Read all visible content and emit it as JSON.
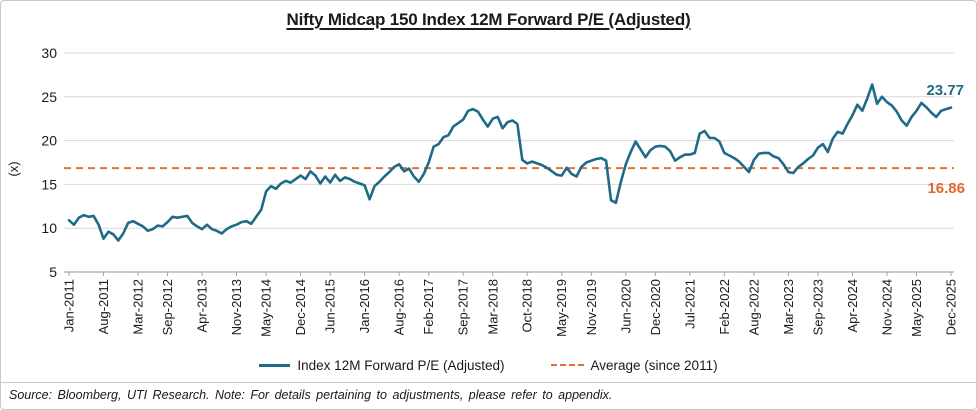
{
  "title": "Nifty Midcap 150 Index 12M Forward P/E (Adjusted)",
  "footer": "Source: Bloomberg, UTI Research. Note: For details pertaining to adjustments, please refer to appendix.",
  "annotations": {
    "last_value": "23.77",
    "average_value": "16.86"
  },
  "colors": {
    "series": "#1F6B87",
    "average": "#E2703C",
    "average_label": "#E2662C",
    "gridline": "#d9d9d9",
    "axis": "#a6a6a6",
    "text": "#1a1a1a"
  },
  "legend": [
    {
      "label": "Index 12M Forward P/E (Adjusted)",
      "type": "solid-line",
      "color": "#1F6B87"
    },
    {
      "label": "Average (since 2011)",
      "type": "dashed-line",
      "color": "#E2703C"
    }
  ],
  "chart_data": {
    "type": "line",
    "title": "Nifty Midcap 150 Index 12M Forward P/E (Adjusted)",
    "xlabel": "",
    "ylabel": "(x)",
    "ylim": [
      5,
      30
    ],
    "y_ticks": [
      5,
      10,
      15,
      20,
      25,
      30
    ],
    "grid": true,
    "legend_position": "bottom",
    "frequency": "monthly",
    "x_start": "Jan-2011",
    "x_end": "Dec-2025",
    "x_ticks": [
      {
        "label": "Jan-2011",
        "month": 0
      },
      {
        "label": "Aug-2011",
        "month": 7
      },
      {
        "label": "Mar-2012",
        "month": 14
      },
      {
        "label": "Sep-2012",
        "month": 20
      },
      {
        "label": "Apr-2013",
        "month": 27
      },
      {
        "label": "Nov-2013",
        "month": 34
      },
      {
        "label": "May-2014",
        "month": 40
      },
      {
        "label": "Dec-2014",
        "month": 47
      },
      {
        "label": "Jun-2015",
        "month": 53
      },
      {
        "label": "Jan-2016",
        "month": 60
      },
      {
        "label": "Aug-2016",
        "month": 67
      },
      {
        "label": "Feb-2017",
        "month": 73
      },
      {
        "label": "Sep-2017",
        "month": 80
      },
      {
        "label": "Mar-2018",
        "month": 86
      },
      {
        "label": "Oct-2018",
        "month": 93
      },
      {
        "label": "May-2019",
        "month": 100
      },
      {
        "label": "Nov-2019",
        "month": 106
      },
      {
        "label": "Jun-2020",
        "month": 113
      },
      {
        "label": "Dec-2020",
        "month": 119
      },
      {
        "label": "Jul-2021",
        "month": 126
      },
      {
        "label": "Feb-2022",
        "month": 133
      },
      {
        "label": "Aug-2022",
        "month": 139
      },
      {
        "label": "Mar-2023",
        "month": 146
      },
      {
        "label": "Sep-2023",
        "month": 152
      },
      {
        "label": "Apr-2024",
        "month": 159
      },
      {
        "label": "Nov-2024",
        "month": 166
      },
      {
        "label": "May-2025",
        "month": 172
      },
      {
        "label": "Dec-2025",
        "month": 179
      }
    ],
    "average": {
      "name": "Average (since 2011)",
      "value": 16.86,
      "color": "#E2703C"
    },
    "series": [
      {
        "name": "Index 12M Forward P/E (Adjusted)",
        "color": "#1F6B87",
        "last_value": 23.77,
        "values": [
          10.9,
          10.4,
          11.2,
          11.5,
          11.3,
          11.4,
          10.4,
          8.8,
          9.6,
          9.3,
          8.6,
          9.4,
          10.6,
          10.8,
          10.5,
          10.2,
          9.7,
          9.9,
          10.3,
          10.2,
          10.7,
          11.3,
          11.2,
          11.3,
          11.4,
          10.6,
          10.2,
          9.9,
          10.4,
          9.9,
          9.7,
          9.4,
          9.9,
          10.2,
          10.4,
          10.7,
          10.8,
          10.5,
          11.3,
          12.1,
          14.2,
          14.8,
          14.5,
          15.1,
          15.4,
          15.2,
          15.6,
          16.0,
          15.6,
          16.5,
          16.0,
          15.1,
          15.9,
          15.2,
          16.1,
          15.4,
          15.8,
          15.6,
          15.3,
          15.1,
          14.9,
          13.3,
          14.8,
          15.3,
          15.9,
          16.4,
          17.0,
          17.3,
          16.5,
          16.8,
          15.9,
          15.3,
          16.2,
          17.5,
          19.3,
          19.6,
          20.4,
          20.6,
          21.6,
          22.0,
          22.4,
          23.4,
          23.6,
          23.3,
          22.4,
          21.6,
          22.5,
          22.7,
          21.4,
          22.1,
          22.3,
          21.9,
          17.8,
          17.4,
          17.6,
          17.4,
          17.2,
          16.9,
          16.5,
          16.1,
          16.0,
          16.9,
          16.2,
          15.9,
          17.0,
          17.5,
          17.7,
          17.9,
          18.0,
          17.7,
          13.2,
          12.9,
          15.3,
          17.3,
          18.7,
          19.9,
          19.0,
          18.1,
          18.9,
          19.3,
          19.4,
          19.3,
          18.8,
          17.7,
          18.1,
          18.4,
          18.4,
          18.6,
          20.8,
          21.1,
          20.3,
          20.3,
          19.9,
          18.6,
          18.3,
          18.0,
          17.6,
          17.0,
          16.4,
          17.8,
          18.5,
          18.6,
          18.6,
          18.2,
          18.0,
          17.3,
          16.4,
          16.3,
          17.0,
          17.4,
          17.9,
          18.3,
          19.2,
          19.6,
          18.7,
          20.2,
          21.0,
          20.8,
          21.9,
          22.9,
          24.1,
          23.4,
          24.8,
          26.4,
          24.2,
          25.0,
          24.4,
          24.0,
          23.3,
          22.3,
          21.7,
          22.7,
          23.4,
          24.3,
          23.8,
          23.2,
          22.7,
          23.4,
          23.6,
          23.77
        ]
      }
    ]
  }
}
